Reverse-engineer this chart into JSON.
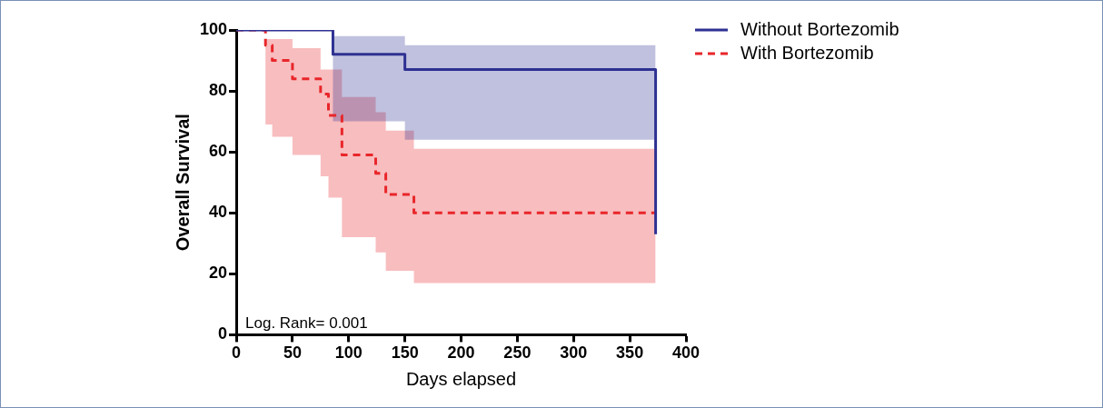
{
  "chart_data": {
    "type": "step",
    "xlabel": "Days elapsed",
    "ylabel": "Overall Survival",
    "xlim": [
      0,
      400
    ],
    "xticks": [
      0,
      50,
      100,
      150,
      200,
      250,
      300,
      350,
      400
    ],
    "ylim": [
      0,
      100
    ],
    "yticks": [
      0,
      20,
      40,
      60,
      80,
      100
    ],
    "grid": false,
    "legend": "top right",
    "marker": "none",
    "annotations": [
      "Log. Rank= 0.001"
    ],
    "series": [
      {
        "name": "Without Bortezomib",
        "color": "#2e3192",
        "line_style": "solid",
        "x": [
          0,
          86,
          150,
          373
        ],
        "values": [
          100,
          92,
          87,
          33
        ],
        "lower": [
          100,
          70,
          64,
          64
        ],
        "upper": [
          100,
          98,
          95,
          95
        ]
      },
      {
        "name": "With Bortezomib",
        "color": "#e8262a",
        "line_style": "dashed",
        "x": [
          0,
          26,
          32,
          50,
          75,
          82,
          94,
          124,
          133,
          158,
          373
        ],
        "values": [
          100,
          95,
          90,
          84,
          79,
          72,
          59,
          53,
          46,
          40,
          40
        ],
        "lower": [
          100,
          69,
          65,
          59,
          52,
          45,
          32,
          27,
          21,
          17,
          17
        ],
        "upper": [
          100,
          97,
          97,
          94,
          87,
          87,
          78,
          73,
          67,
          61,
          61
        ]
      }
    ]
  }
}
